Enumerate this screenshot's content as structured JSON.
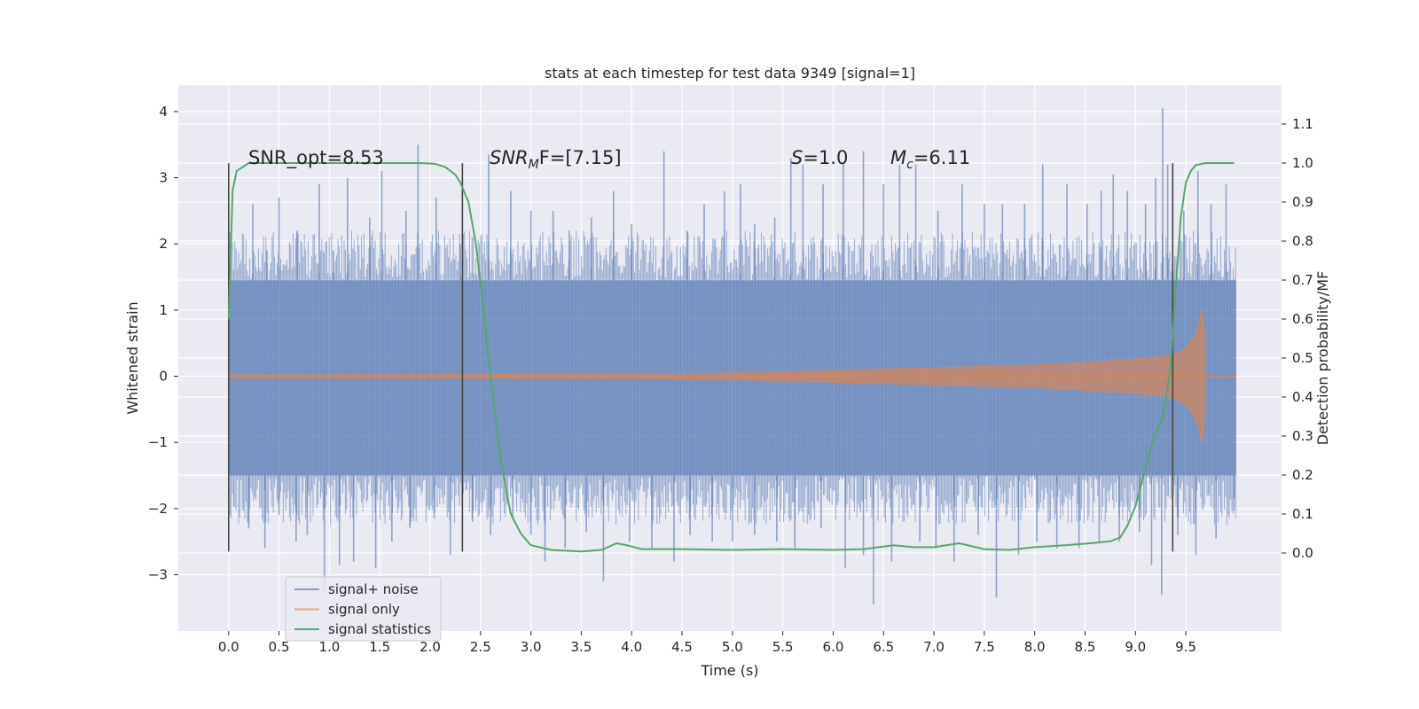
{
  "chart_data": {
    "type": "line",
    "title": "stats at each timestep for test data 9349 [signal=1]",
    "xlabel": "Time (s)",
    "ylabel": "Whitened strain",
    "y2label": "Detection probability/MF",
    "xlim": [
      -0.5,
      10.45
    ],
    "ylim": [
      -3.85,
      4.4
    ],
    "y2lim": [
      -0.2,
      1.2
    ],
    "x_ticks": [
      "0.0",
      "0.5",
      "1.0",
      "1.5",
      "2.0",
      "2.5",
      "3.0",
      "3.5",
      "4.0",
      "4.5",
      "5.0",
      "5.5",
      "6.0",
      "6.5",
      "7.0",
      "7.5",
      "8.0",
      "8.5",
      "9.0",
      "9.5"
    ],
    "x_tick_values": [
      0,
      0.5,
      1,
      1.5,
      2,
      2.5,
      3,
      3.5,
      4,
      4.5,
      5,
      5.5,
      6,
      6.5,
      7,
      7.5,
      8,
      8.5,
      9,
      9.5
    ],
    "y_ticks": [
      "−3",
      "−2",
      "−1",
      "0",
      "1",
      "2",
      "3",
      "4"
    ],
    "y_tick_values": [
      -3,
      -2,
      -1,
      0,
      1,
      2,
      3,
      4
    ],
    "y2_ticks": [
      "0.0",
      "0.1",
      "0.2",
      "0.3",
      "0.4",
      "0.5",
      "0.6",
      "0.7",
      "0.8",
      "0.9",
      "1.0",
      "1.1"
    ],
    "y2_tick_values": [
      0,
      0.1,
      0.2,
      0.3,
      0.4,
      0.5,
      0.6,
      0.7,
      0.8,
      0.9,
      1.0,
      1.1
    ],
    "grid": true,
    "legend_position": "lower-left",
    "annotations": [
      {
        "id": "snr-opt",
        "text": "SNR_opt=8.53"
      },
      {
        "id": "snr-mf",
        "base": "SNR",
        "sub": "M",
        "tail": "F=[7.15]"
      },
      {
        "id": "s-val",
        "base": "S",
        "tail": "=1.0"
      },
      {
        "id": "mc-val",
        "base": "M",
        "sub": "c",
        "tail": "=6.11"
      }
    ],
    "vlines": [
      {
        "x": 0.0,
        "ymin": -2.65,
        "ymax": 3.22
      },
      {
        "x": 2.32,
        "ymin": -2.65,
        "ymax": 3.22
      },
      {
        "x": 9.37,
        "ymin": -2.65,
        "ymax": 3.22
      }
    ],
    "series": [
      {
        "name": "signal+ noise",
        "color": "#4c72b0",
        "kind": "noise-band",
        "x_range": [
          0.0,
          10.0
        ],
        "band_upper": 1.45,
        "band_lower": -1.5,
        "spikes_upper": [
          [
            0.24,
            2.6
          ],
          [
            0.38,
            1.9
          ],
          [
            0.5,
            2.7
          ],
          [
            0.68,
            2.2
          ],
          [
            0.9,
            2.9
          ],
          [
            1.04,
            1.9
          ],
          [
            1.18,
            3.0
          ],
          [
            1.4,
            2.4
          ],
          [
            1.52,
            3.1
          ],
          [
            1.76,
            2.5
          ],
          [
            1.88,
            3.5
          ],
          [
            2.06,
            2.7
          ],
          [
            2.3,
            2.0
          ],
          [
            2.58,
            3.35
          ],
          [
            2.8,
            2.8
          ],
          [
            3.0,
            2.5
          ],
          [
            3.22,
            2.5
          ],
          [
            3.38,
            2.2
          ],
          [
            3.6,
            2.4
          ],
          [
            3.82,
            2.8
          ],
          [
            4.0,
            2.3
          ],
          [
            4.32,
            3.4
          ],
          [
            4.55,
            2.2
          ],
          [
            4.72,
            2.6
          ],
          [
            4.92,
            2.8
          ],
          [
            5.08,
            2.9
          ],
          [
            5.22,
            2.3
          ],
          [
            5.42,
            2.4
          ],
          [
            5.58,
            3.3
          ],
          [
            5.7,
            3.2
          ],
          [
            5.9,
            2.9
          ],
          [
            6.1,
            3.2
          ],
          [
            6.3,
            3.4
          ],
          [
            6.5,
            2.9
          ],
          [
            6.66,
            3.2
          ],
          [
            6.82,
            3.2
          ],
          [
            7.04,
            2.5
          ],
          [
            7.28,
            2.9
          ],
          [
            7.5,
            2.6
          ],
          [
            7.68,
            2.6
          ],
          [
            7.9,
            2.6
          ],
          [
            8.08,
            3.2
          ],
          [
            8.32,
            2.9
          ],
          [
            8.52,
            2.6
          ],
          [
            8.66,
            2.8
          ],
          [
            8.78,
            3.05
          ],
          [
            8.92,
            2.8
          ],
          [
            9.1,
            2.6
          ],
          [
            9.2,
            3.0
          ],
          [
            9.27,
            4.05
          ],
          [
            9.32,
            3.2
          ],
          [
            9.48,
            2.5
          ],
          [
            9.62,
            3.1
          ],
          [
            9.75,
            2.6
          ],
          [
            9.9,
            2.9
          ]
        ],
        "spikes_lower": [
          [
            0.2,
            -2.3
          ],
          [
            0.36,
            -2.6
          ],
          [
            0.5,
            -2.1
          ],
          [
            0.67,
            -2.5
          ],
          [
            0.78,
            -2.4
          ],
          [
            0.95,
            -3.25
          ],
          [
            1.1,
            -2.85
          ],
          [
            1.24,
            -2.8
          ],
          [
            1.46,
            -2.9
          ],
          [
            1.62,
            -2.5
          ],
          [
            1.8,
            -2.3
          ],
          [
            2.04,
            -2.15
          ],
          [
            2.2,
            -2.7
          ],
          [
            2.42,
            -2.2
          ],
          [
            2.6,
            -2.4
          ],
          [
            2.82,
            -2.15
          ],
          [
            3.0,
            -2.4
          ],
          [
            3.14,
            -2.8
          ],
          [
            3.34,
            -2.6
          ],
          [
            3.55,
            -2.35
          ],
          [
            3.72,
            -3.1
          ],
          [
            3.98,
            -2.5
          ],
          [
            4.2,
            -2.6
          ],
          [
            4.42,
            -2.8
          ],
          [
            4.58,
            -2.4
          ],
          [
            4.8,
            -2.5
          ],
          [
            5.0,
            -2.5
          ],
          [
            5.22,
            -2.4
          ],
          [
            5.44,
            -2.5
          ],
          [
            5.62,
            -2.6
          ],
          [
            5.88,
            -2.3
          ],
          [
            6.12,
            -2.9
          ],
          [
            6.3,
            -2.7
          ],
          [
            6.4,
            -3.45
          ],
          [
            6.58,
            -2.8
          ],
          [
            6.86,
            -2.5
          ],
          [
            7.02,
            -2.6
          ],
          [
            7.2,
            -2.8
          ],
          [
            7.44,
            -2.4
          ],
          [
            7.62,
            -3.35
          ],
          [
            7.84,
            -2.7
          ],
          [
            8.02,
            -2.5
          ],
          [
            8.22,
            -2.6
          ],
          [
            8.44,
            -2.6
          ],
          [
            8.64,
            -2.5
          ],
          [
            8.84,
            -2.5
          ],
          [
            9.04,
            -2.35
          ],
          [
            9.16,
            -2.85
          ],
          [
            9.26,
            -3.3
          ],
          [
            9.42,
            -2.4
          ],
          [
            9.6,
            -2.7
          ],
          [
            9.8,
            -2.45
          ],
          [
            9.98,
            -1.85
          ]
        ]
      },
      {
        "name": "signal only",
        "color": "#dd8452",
        "kind": "chirp",
        "x_range": [
          0.0,
          10.0
        ],
        "amplitude_envelope": [
          [
            0.0,
            0.02
          ],
          [
            4.0,
            0.03
          ],
          [
            5.0,
            0.05
          ],
          [
            6.0,
            0.09
          ],
          [
            7.0,
            0.13
          ],
          [
            8.0,
            0.17
          ],
          [
            8.5,
            0.21
          ],
          [
            9.0,
            0.26
          ],
          [
            9.3,
            0.3
          ],
          [
            9.45,
            0.38
          ],
          [
            9.55,
            0.52
          ],
          [
            9.62,
            0.72
          ],
          [
            9.66,
            1.0
          ],
          [
            9.68,
            0.8
          ],
          [
            9.7,
            0.0
          ],
          [
            10.0,
            0.0
          ]
        ]
      },
      {
        "name": "signal statistics",
        "color": "#55a868",
        "axis": "y2",
        "x": [
          0.0,
          0.04,
          0.08,
          0.14,
          0.2,
          0.3,
          0.5,
          1.0,
          1.5,
          1.9,
          2.05,
          2.15,
          2.25,
          2.3,
          2.38,
          2.45,
          2.52,
          2.6,
          2.7,
          2.8,
          2.9,
          3.0,
          3.2,
          3.5,
          3.7,
          3.85,
          3.95,
          4.1,
          4.5,
          5.0,
          5.5,
          6.0,
          6.3,
          6.6,
          6.8,
          7.0,
          7.25,
          7.5,
          7.75,
          8.0,
          8.3,
          8.55,
          8.75,
          8.85,
          8.92,
          9.0,
          9.1,
          9.2,
          9.25,
          9.3,
          9.35,
          9.4,
          9.45,
          9.5,
          9.55,
          9.6,
          9.7,
          9.98
        ],
        "y": [
          0.6,
          0.93,
          0.98,
          0.99,
          1.0,
          1.0,
          1.0,
          1.0,
          1.0,
          1.0,
          0.998,
          0.99,
          0.97,
          0.95,
          0.9,
          0.8,
          0.65,
          0.45,
          0.24,
          0.1,
          0.05,
          0.02,
          0.008,
          0.004,
          0.008,
          0.025,
          0.02,
          0.01,
          0.01,
          0.008,
          0.01,
          0.008,
          0.01,
          0.02,
          0.015,
          0.015,
          0.025,
          0.01,
          0.008,
          0.015,
          0.02,
          0.025,
          0.03,
          0.04,
          0.07,
          0.12,
          0.22,
          0.31,
          0.33,
          0.39,
          0.48,
          0.68,
          0.86,
          0.95,
          0.98,
          0.995,
          1.0,
          1.0
        ]
      }
    ]
  }
}
